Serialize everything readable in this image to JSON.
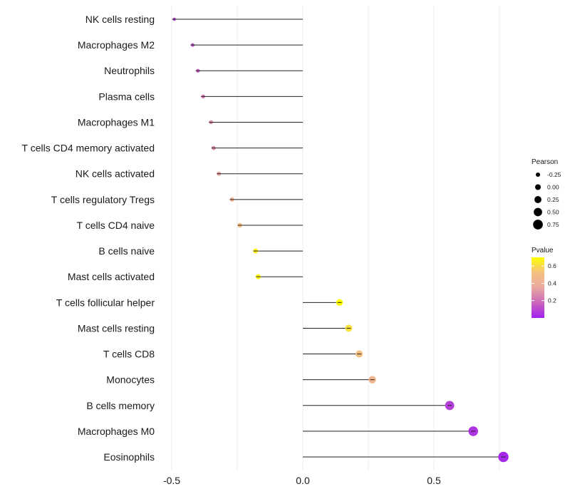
{
  "chart_data": {
    "type": "lollipop",
    "title": "",
    "xlabel": "",
    "ylabel": "",
    "xlim": [
      -0.5,
      0.78
    ],
    "x_ticks": [
      -0.5,
      0.0,
      0.5
    ],
    "x_tick_labels": [
      "-0.5",
      "0.0",
      "0.5"
    ],
    "grid": true,
    "categories": [
      "NK cells resting",
      "Macrophages M2",
      "Neutrophils",
      "Plasma cells",
      "Macrophages M1",
      "T cells CD4 memory activated",
      "NK cells activated",
      "T cells regulatory  Tregs",
      "T cells CD4 naive",
      "B cells naive",
      "Mast cells activated",
      "T cells follicular helper",
      "Mast cells resting",
      "T cells CD8",
      "Monocytes",
      "B cells memory",
      "Macrophages M0",
      "Eosinophils"
    ],
    "values": [
      -0.49,
      -0.42,
      -0.4,
      -0.38,
      -0.35,
      -0.34,
      -0.32,
      -0.27,
      -0.24,
      -0.18,
      -0.17,
      0.14,
      0.175,
      0.215,
      0.265,
      0.56,
      0.65,
      0.765
    ],
    "pvalues": [
      0.1,
      0.12,
      0.15,
      0.22,
      0.28,
      0.26,
      0.33,
      0.45,
      0.5,
      0.66,
      0.68,
      0.7,
      0.62,
      0.52,
      0.45,
      0.08,
      0.05,
      0.02
    ],
    "size_legend": {
      "title": "Pearson",
      "values": [
        -0.25,
        0.0,
        0.25,
        0.5,
        0.75
      ],
      "labels": [
        "-0.25",
        "0.00",
        "0.25",
        "0.50",
        "0.75"
      ]
    },
    "color_legend": {
      "title": "Pvalue",
      "range": [
        0.0,
        0.7
      ],
      "tick_values": [
        0.2,
        0.4,
        0.6
      ],
      "tick_labels": [
        "0.2",
        "0.4",
        "0.6"
      ],
      "colors": [
        "#a020f0",
        "#cc66bb",
        "#e8a8a0",
        "#f5c080",
        "#ffff00"
      ]
    }
  }
}
